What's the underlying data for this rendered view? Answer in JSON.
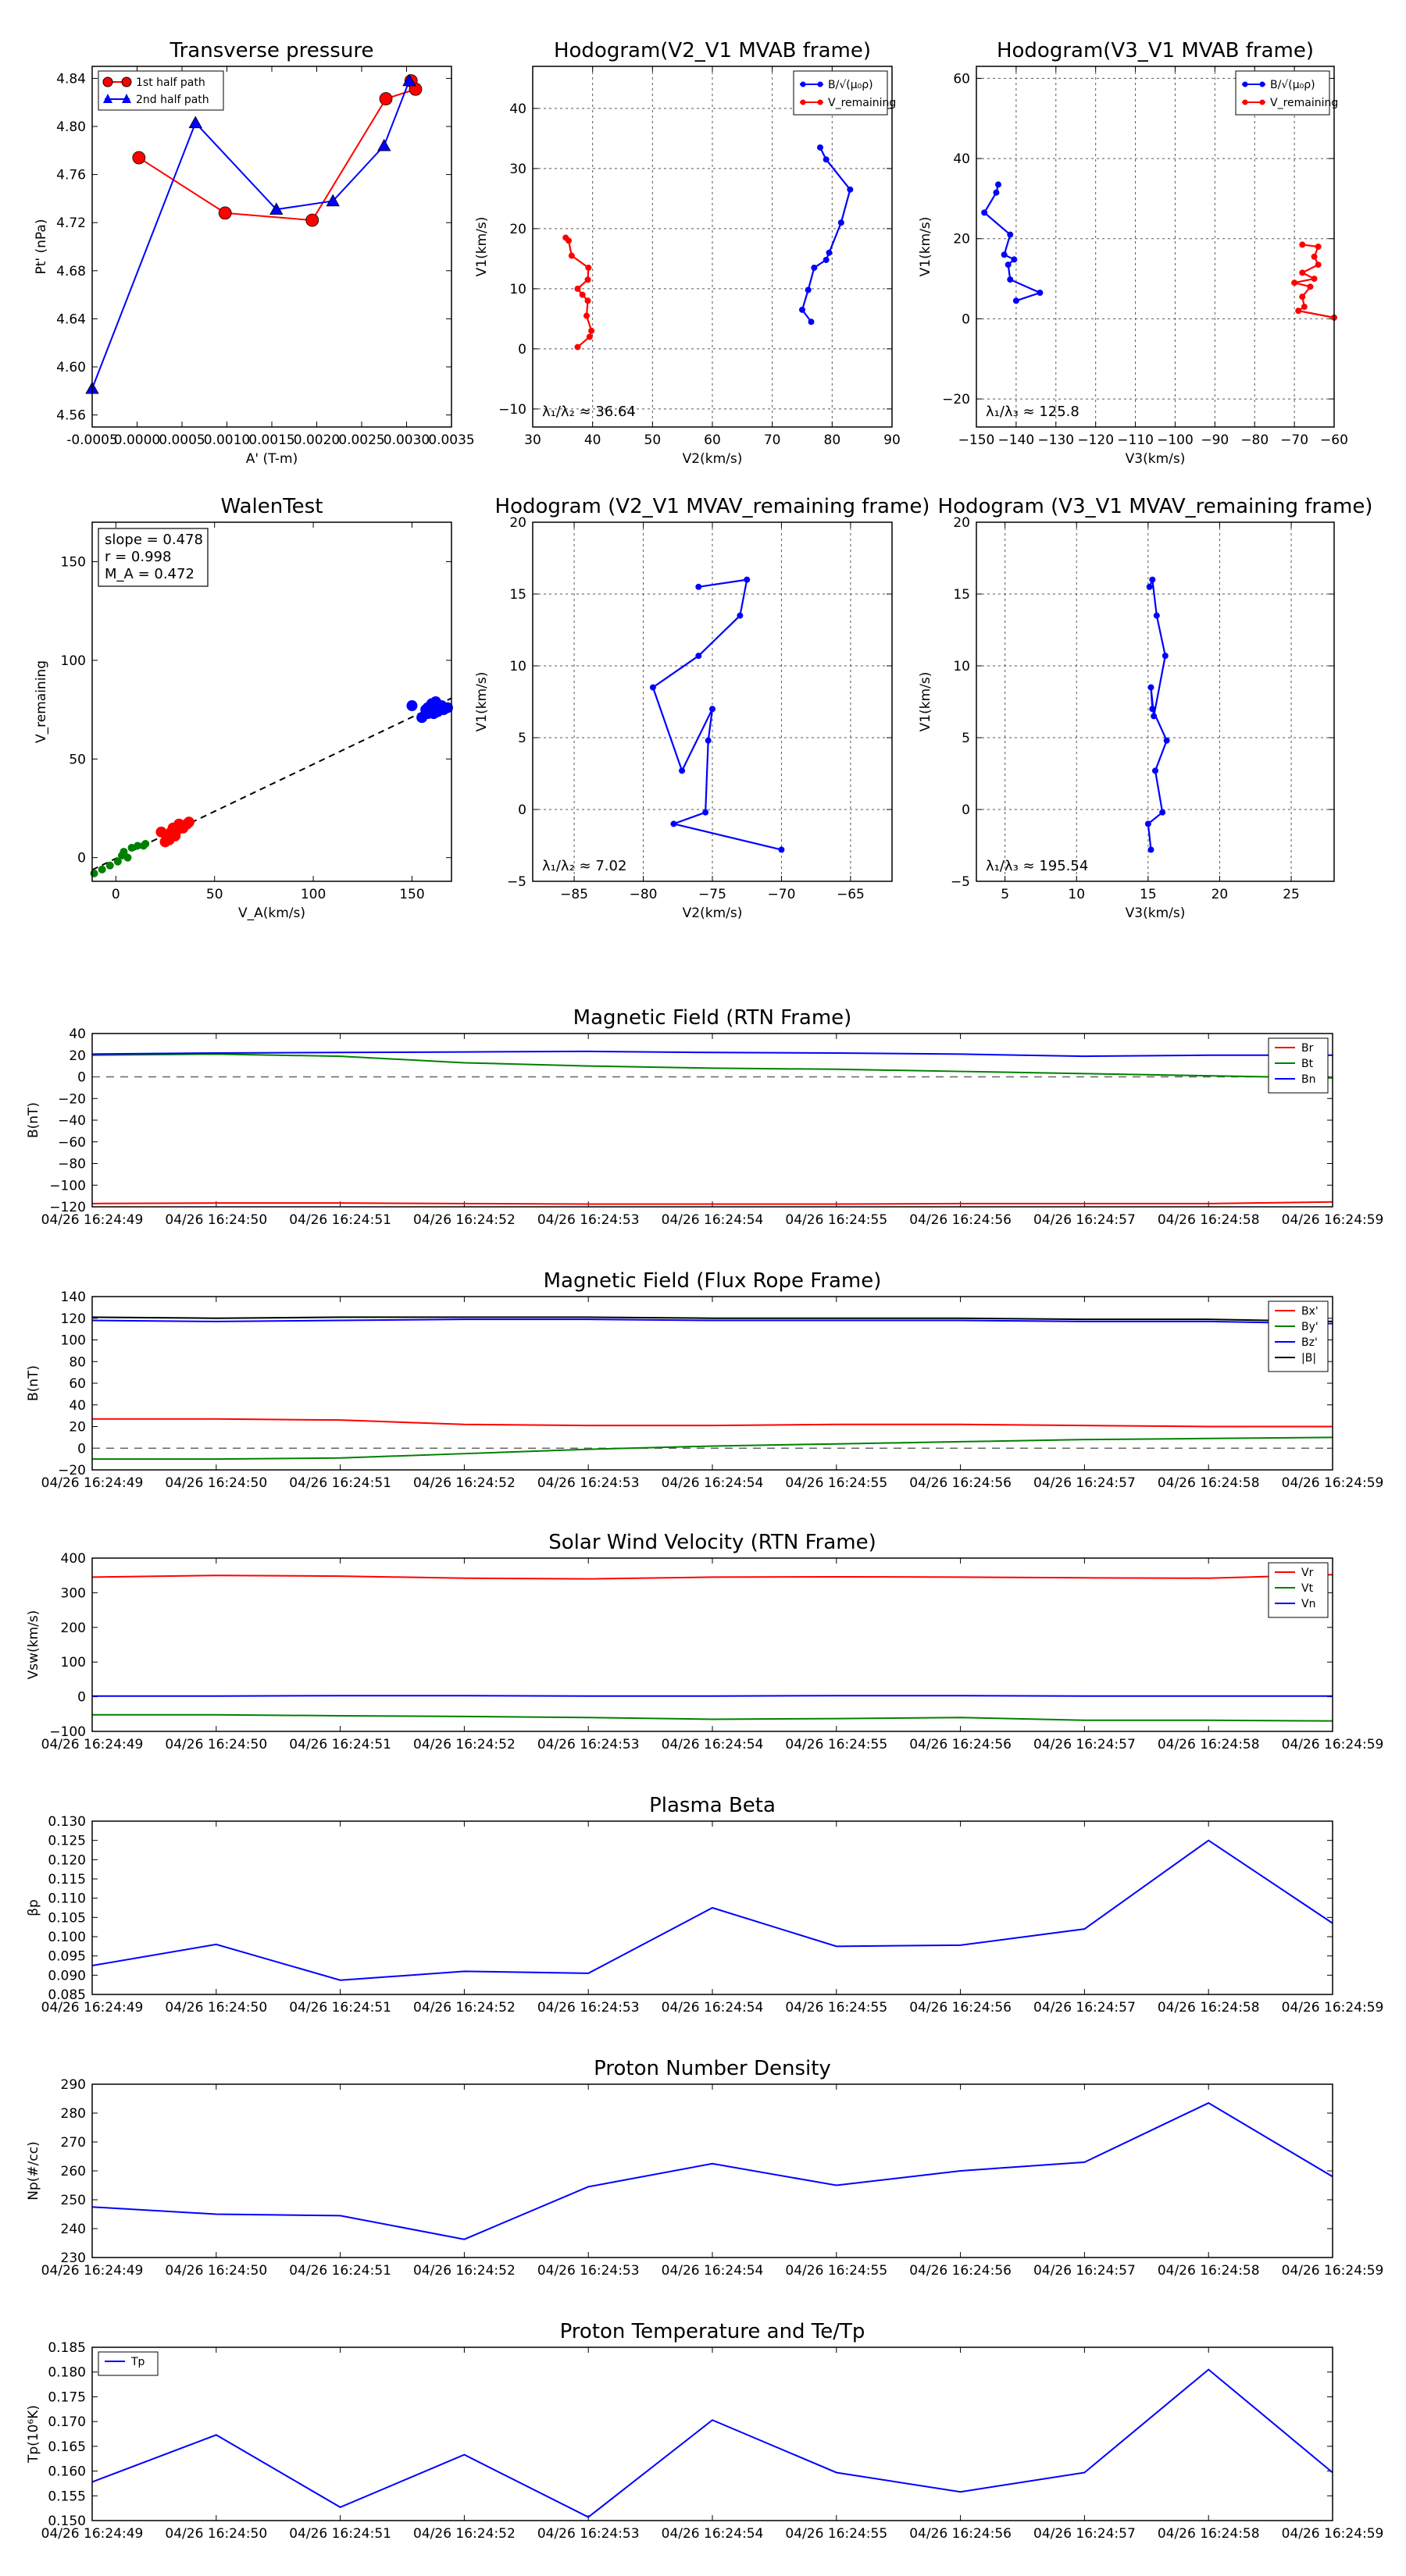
{
  "colors": {
    "red": "#ff0000",
    "blue": "#0000ff",
    "green": "#008000",
    "black": "#000000",
    "darkred": "#8b0000",
    "grid": "#000000"
  },
  "chart_data": [
    {
      "id": "tp",
      "type": "line",
      "title": "Transverse pressure",
      "xlabel": "A' (T-m)",
      "ylabel": "Pt' (nPa)",
      "xlim": [
        -0.0005,
        0.0035
      ],
      "ylim": [
        4.55,
        4.85
      ],
      "xticks": [
        -0.0005,
        0.0,
        0.0005,
        0.001,
        0.0015,
        0.002,
        0.0025,
        0.003,
        0.0035
      ],
      "xticklabels": [
        "-0.0005",
        "0.0000",
        "0.0005",
        "0.0010",
        "0.0015",
        "0.0020",
        "0.0025",
        "0.0030",
        "0.0035"
      ],
      "yticks": [
        4.56,
        4.6,
        4.64,
        4.68,
        4.72,
        4.76,
        4.8,
        4.84
      ],
      "yticklabels": [
        "4.56",
        "4.60",
        "4.64",
        "4.68",
        "4.72",
        "4.76",
        "4.80",
        "4.84"
      ],
      "legend": {
        "loc": "top-left",
        "entries": [
          "1st half path",
          "2nd half path"
        ]
      },
      "series": [
        {
          "name": "1st half path",
          "color": "red",
          "marker": "circle",
          "x": [
            0.00305,
            0.0031,
            0.00277,
            0.00195,
            0.00098,
            2e-05
          ],
          "y": [
            4.838,
            4.831,
            4.823,
            4.722,
            4.728,
            4.774
          ]
        },
        {
          "name": "2nd half path",
          "color": "blue",
          "marker": "triangle",
          "x": [
            -0.0005,
            0.00065,
            0.00155,
            0.00218,
            0.00275,
            0.00303
          ],
          "y": [
            4.582,
            4.803,
            4.731,
            4.738,
            4.784,
            4.838
          ]
        }
      ]
    },
    {
      "id": "h1",
      "type": "line",
      "title": "Hodogram(V2_V1 MVAB frame)",
      "xlabel": "V2(km/s)",
      "ylabel": "V1(km/s)",
      "xlim": [
        30,
        90
      ],
      "ylim": [
        -13,
        47
      ],
      "xticks": [
        30,
        40,
        50,
        60,
        70,
        80,
        90
      ],
      "xticklabels": [
        "30",
        "40",
        "50",
        "60",
        "70",
        "80",
        "90"
      ],
      "yticks": [
        -10,
        0,
        10,
        20,
        30,
        40
      ],
      "yticklabels": [
        "−10",
        "0",
        "10",
        "20",
        "30",
        "40"
      ],
      "legend": {
        "loc": "top-right",
        "entries": [
          "B/√(μ₀ρ)",
          "V_remaining"
        ]
      },
      "annotation": "λ₁/λ₂ ≈ 36.64",
      "series": [
        {
          "name": "B",
          "color": "blue",
          "x": [
            76.5,
            75,
            76,
            77,
            79,
            79.5,
            81.5,
            83,
            79,
            78
          ],
          "y": [
            4.5,
            6.5,
            9.8,
            13.5,
            14.8,
            16,
            21,
            26.5,
            31.5,
            33.5
          ]
        },
        {
          "name": "V",
          "color": "red",
          "x": [
            37.5,
            39.5,
            39.8,
            39,
            39.2,
            38.3,
            37.5,
            39.2,
            39.3,
            36.5,
            36,
            35.5
          ],
          "y": [
            0.3,
            2,
            3,
            5.5,
            8,
            9,
            10,
            11.5,
            13.5,
            15.5,
            18,
            18.5
          ]
        }
      ]
    },
    {
      "id": "h2",
      "type": "line",
      "title": "Hodogram(V3_V1 MVAB frame)",
      "xlabel": "V3(km/s)",
      "ylabel": "V1(km/s)",
      "xlim": [
        -150,
        -60
      ],
      "ylim": [
        -27,
        63
      ],
      "xticks": [
        -150,
        -140,
        -130,
        -120,
        -110,
        -100,
        -90,
        -80,
        -70,
        -60
      ],
      "xticklabels": [
        "−150",
        "−140",
        "−130",
        "−120",
        "−110",
        "−100",
        "−90",
        "−80",
        "−70",
        "−60"
      ],
      "yticks": [
        -20,
        0,
        20,
        40,
        60
      ],
      "yticklabels": [
        "−20",
        "0",
        "20",
        "40",
        "60"
      ],
      "legend": {
        "loc": "top-right",
        "entries": [
          "B/√(μ₀ρ)",
          "V_remaining"
        ]
      },
      "annotation": "λ₁/λ₃ ≈ 125.8",
      "series": [
        {
          "name": "B",
          "color": "blue",
          "x": [
            -140,
            -134,
            -141.5,
            -142,
            -140.5,
            -143,
            -141.5,
            -148,
            -145,
            -144.5
          ],
          "y": [
            4.5,
            6.5,
            9.8,
            13.5,
            14.8,
            16,
            21,
            26.5,
            31.5,
            33.5
          ]
        },
        {
          "name": "V",
          "color": "red",
          "x": [
            -60,
            -69,
            -67.5,
            -68,
            -66,
            -70,
            -65,
            -68,
            -64,
            -65,
            -64,
            -68
          ],
          "y": [
            0.3,
            2,
            3,
            5.5,
            8,
            9,
            10,
            11.5,
            13.5,
            15.5,
            18,
            18.5
          ]
        }
      ]
    },
    {
      "id": "walen",
      "type": "scatter",
      "title": "WalenTest",
      "xlabel": "V_A(km/s)",
      "ylabel": "V_remaining",
      "xlim": [
        -12,
        170
      ],
      "ylim": [
        -12,
        170
      ],
      "xticks": [
        0,
        50,
        100,
        150
      ],
      "xticklabels": [
        "0",
        "50",
        "100",
        "150"
      ],
      "yticks": [
        0,
        50,
        100,
        150
      ],
      "yticklabels": [
        "0",
        "50",
        "100",
        "150"
      ],
      "stats": [
        "slope = 0.478",
        "r = 0.998",
        "M_A = 0.472"
      ],
      "fit_line": {
        "x": [
          -12,
          170
        ],
        "y": [
          -6.2,
          80.8
        ]
      },
      "series": [
        {
          "name": "Vr",
          "color": "blue",
          "x": [
            150,
            155,
            158,
            160,
            162,
            163,
            165,
            158,
            166,
            157,
            161,
            168
          ],
          "y": [
            77,
            71,
            76,
            78,
            79,
            74,
            77,
            73,
            75,
            75,
            73,
            76
          ]
        },
        {
          "name": "Vt",
          "color": "darkred",
          "x": [
            23,
            25,
            26,
            27,
            28,
            29,
            30,
            31,
            32,
            33,
            34,
            36,
            37
          ],
          "y": [
            13,
            8,
            11,
            9,
            13,
            15,
            11,
            14,
            17,
            16,
            15,
            17,
            18
          ]
        },
        {
          "name": "Vn",
          "color": "green",
          "x": [
            -11,
            -7,
            -3,
            1,
            3,
            4,
            6,
            8,
            11,
            14,
            15
          ],
          "y": [
            -8,
            -6,
            -4,
            -2,
            1,
            3,
            0,
            5,
            6,
            6,
            7
          ]
        }
      ]
    },
    {
      "id": "h3",
      "type": "line",
      "title": "Hodogram (V2_V1 MVAV_remaining frame)",
      "xlabel": "V2(km/s)",
      "ylabel": "V1(km/s)",
      "xlim": [
        -88,
        -62
      ],
      "ylim": [
        -5,
        20
      ],
      "xticks": [
        -85,
        -80,
        -75,
        -70,
        -65
      ],
      "xticklabels": [
        "−85",
        "−80",
        "−75",
        "−70",
        "−65"
      ],
      "yticks": [
        -5,
        0,
        5,
        10,
        15,
        20
      ],
      "yticklabels": [
        "−5",
        "0",
        "5",
        "10",
        "15",
        "20"
      ],
      "annotation": "λ₁/λ₂ ≈ 7.02",
      "series": [
        {
          "name": "V",
          "color": "blue",
          "x": [
            -70,
            -77.8,
            -75.5,
            -75.3,
            -75,
            -77.2,
            -79.3,
            -76,
            -73,
            -72.5,
            -76
          ],
          "y": [
            -2.8,
            -1,
            -0.2,
            4.8,
            7,
            2.7,
            8.5,
            10.7,
            13.5,
            16,
            15.5
          ]
        }
      ]
    },
    {
      "id": "h4",
      "type": "line",
      "title": "Hodogram (V3_V1 MVAV_remaining frame)",
      "xlabel": "V3(km/s)",
      "ylabel": "V1(km/s)",
      "xlim": [
        3,
        28
      ],
      "ylim": [
        -5,
        20
      ],
      "xticks": [
        5,
        10,
        15,
        20,
        25
      ],
      "xticklabels": [
        "5",
        "10",
        "15",
        "20",
        "25"
      ],
      "yticks": [
        -5,
        0,
        5,
        10,
        15,
        20
      ],
      "yticklabels": [
        "−5",
        "0",
        "5",
        "10",
        "15",
        "20"
      ],
      "annotation": "λ₁/λ₃ ≈ 195.54",
      "series": [
        {
          "name": "V",
          "color": "blue",
          "x": [
            15.2,
            15,
            16,
            15.5,
            16.3,
            15.3,
            15.2,
            15.4,
            16.2,
            15.6,
            15.3,
            15.1
          ],
          "y": [
            -2.8,
            -1,
            -0.2,
            2.7,
            4.8,
            7,
            8.5,
            6.5,
            10.7,
            13.5,
            16,
            15.5
          ]
        }
      ]
    },
    {
      "id": "bfield",
      "type": "line",
      "title": "Magnetic Field (RTN Frame)",
      "ylabel": "B(nT)",
      "ylim": [
        -120,
        40
      ],
      "yticks": [
        -120,
        -100,
        -80,
        -60,
        -40,
        -20,
        0,
        20,
        40
      ],
      "yticklabels": [
        "−120",
        "−100",
        "−80",
        "−60",
        "−40",
        "−20",
        "0",
        "20",
        "40"
      ],
      "zero_line": true,
      "legend": {
        "loc": "top-right"
      },
      "series": [
        {
          "name": "Br",
          "color": "red",
          "y": [
            -117,
            -116.5,
            -116.5,
            -117,
            -117.5,
            -117.5,
            -117.5,
            -117,
            -117,
            -117,
            -115.5
          ]
        },
        {
          "name": "Bt",
          "color": "green",
          "y": [
            20,
            21,
            19,
            13,
            10,
            8,
            7,
            5,
            3,
            1,
            -1
          ]
        },
        {
          "name": "Bn",
          "color": "blue",
          "y": [
            21,
            22,
            22.5,
            23,
            23.5,
            22.5,
            22,
            21,
            19,
            20,
            20
          ]
        }
      ]
    },
    {
      "id": "bflux",
      "type": "line",
      "title": "Magnetic Field (Flux Rope Frame)",
      "ylabel": "B(nT)",
      "ylim": [
        -20,
        140
      ],
      "yticks": [
        -20,
        0,
        20,
        40,
        60,
        80,
        100,
        120,
        140
      ],
      "yticklabels": [
        "−20",
        "0",
        "20",
        "40",
        "60",
        "80",
        "100",
        "120",
        "140"
      ],
      "zero_line": true,
      "legend": {
        "loc": "top-right"
      },
      "series": [
        {
          "name": "Bx'",
          "color": "red",
          "y": [
            27,
            27,
            26,
            22,
            21,
            21,
            22,
            22,
            21,
            20,
            20
          ]
        },
        {
          "name": "By'",
          "color": "green",
          "y": [
            -10,
            -10,
            -9,
            -5,
            -1,
            2,
            4,
            6,
            8,
            9,
            10
          ]
        },
        {
          "name": "Bz'",
          "color": "blue",
          "y": [
            118,
            117,
            118,
            119,
            119,
            118,
            118,
            118,
            117,
            117,
            115
          ]
        },
        {
          "name": "|B|",
          "color": "black",
          "y": [
            121,
            120,
            121,
            121,
            121,
            120,
            120,
            120,
            119,
            119,
            117
          ]
        }
      ]
    },
    {
      "id": "vsw",
      "type": "line",
      "title": "Solar Wind Velocity (RTN Frame)",
      "ylabel": "Vsw(km/s)",
      "ylim": [
        -100,
        400
      ],
      "yticks": [
        -100,
        0,
        100,
        200,
        300,
        400
      ],
      "yticklabels": [
        "−100",
        "0",
        "100",
        "200",
        "300",
        "400"
      ],
      "zero_line": false,
      "legend": {
        "loc": "top-right"
      },
      "series": [
        {
          "name": "Vr",
          "color": "red",
          "y": [
            345,
            350,
            348,
            342,
            340,
            345,
            346,
            345,
            343,
            342,
            352
          ]
        },
        {
          "name": "Vt",
          "color": "green",
          "y": [
            -52,
            -52,
            -55,
            -57,
            -60,
            -65,
            -63,
            -60,
            -68,
            -68,
            -70
          ]
        },
        {
          "name": "Vn",
          "color": "blue",
          "y": [
            2,
            2,
            3,
            3,
            2,
            2,
            3,
            3,
            2,
            2,
            2
          ]
        }
      ]
    },
    {
      "id": "beta",
      "type": "line",
      "title": "Plasma Beta",
      "ylabel": "βp",
      "ylim": [
        0.085,
        0.13
      ],
      "yticks": [
        0.085,
        0.09,
        0.095,
        0.1,
        0.105,
        0.11,
        0.115,
        0.12,
        0.125,
        0.13
      ],
      "yticklabels": [
        "0.085",
        "0.090",
        "0.095",
        "0.100",
        "0.105",
        "0.110",
        "0.115",
        "0.120",
        "0.125",
        "0.130"
      ],
      "series": [
        {
          "name": "beta",
          "color": "blue",
          "y": [
            0.0925,
            0.098,
            0.0887,
            0.091,
            0.0905,
            0.1075,
            0.0975,
            0.0978,
            0.102,
            0.125,
            0.1035
          ]
        }
      ]
    },
    {
      "id": "np",
      "type": "line",
      "title": "Proton Number Density",
      "ylabel": "Np(#/cc)",
      "ylim": [
        230,
        290
      ],
      "yticks": [
        230,
        240,
        250,
        260,
        270,
        280,
        290
      ],
      "yticklabels": [
        "230",
        "240",
        "250",
        "260",
        "270",
        "280",
        "290"
      ],
      "series": [
        {
          "name": "Np",
          "color": "blue",
          "y": [
            247.5,
            245,
            244.5,
            236.3,
            254.5,
            262.5,
            255,
            260,
            263,
            283.5,
            258
          ]
        }
      ]
    },
    {
      "id": "tpp",
      "type": "line",
      "title": "Proton Temperature and Te/Tp",
      "ylabel": "Tp(10⁶K)",
      "ylim": [
        0.15,
        0.185
      ],
      "yticks": [
        0.15,
        0.155,
        0.16,
        0.165,
        0.17,
        0.175,
        0.18,
        0.185
      ],
      "yticklabels": [
        "0.150",
        "0.155",
        "0.160",
        "0.165",
        "0.170",
        "0.175",
        "0.180",
        "0.185"
      ],
      "legend": {
        "loc": "top-left"
      },
      "series": [
        {
          "name": "Tp",
          "color": "blue",
          "y": [
            0.1578,
            0.1673,
            0.1527,
            0.1633,
            0.1507,
            0.1703,
            0.1597,
            0.1558,
            0.1597,
            0.1805,
            0.1597
          ]
        }
      ]
    }
  ],
  "time_axis": {
    "ticklabels": [
      "04/26 16:24:49",
      "04/26 16:24:50",
      "04/26 16:24:51",
      "04/26 16:24:52",
      "04/26 16:24:53",
      "04/26 16:24:54",
      "04/26 16:24:55",
      "04/26 16:24:56",
      "04/26 16:24:57",
      "04/26 16:24:58",
      "04/26 16:24:59"
    ]
  }
}
